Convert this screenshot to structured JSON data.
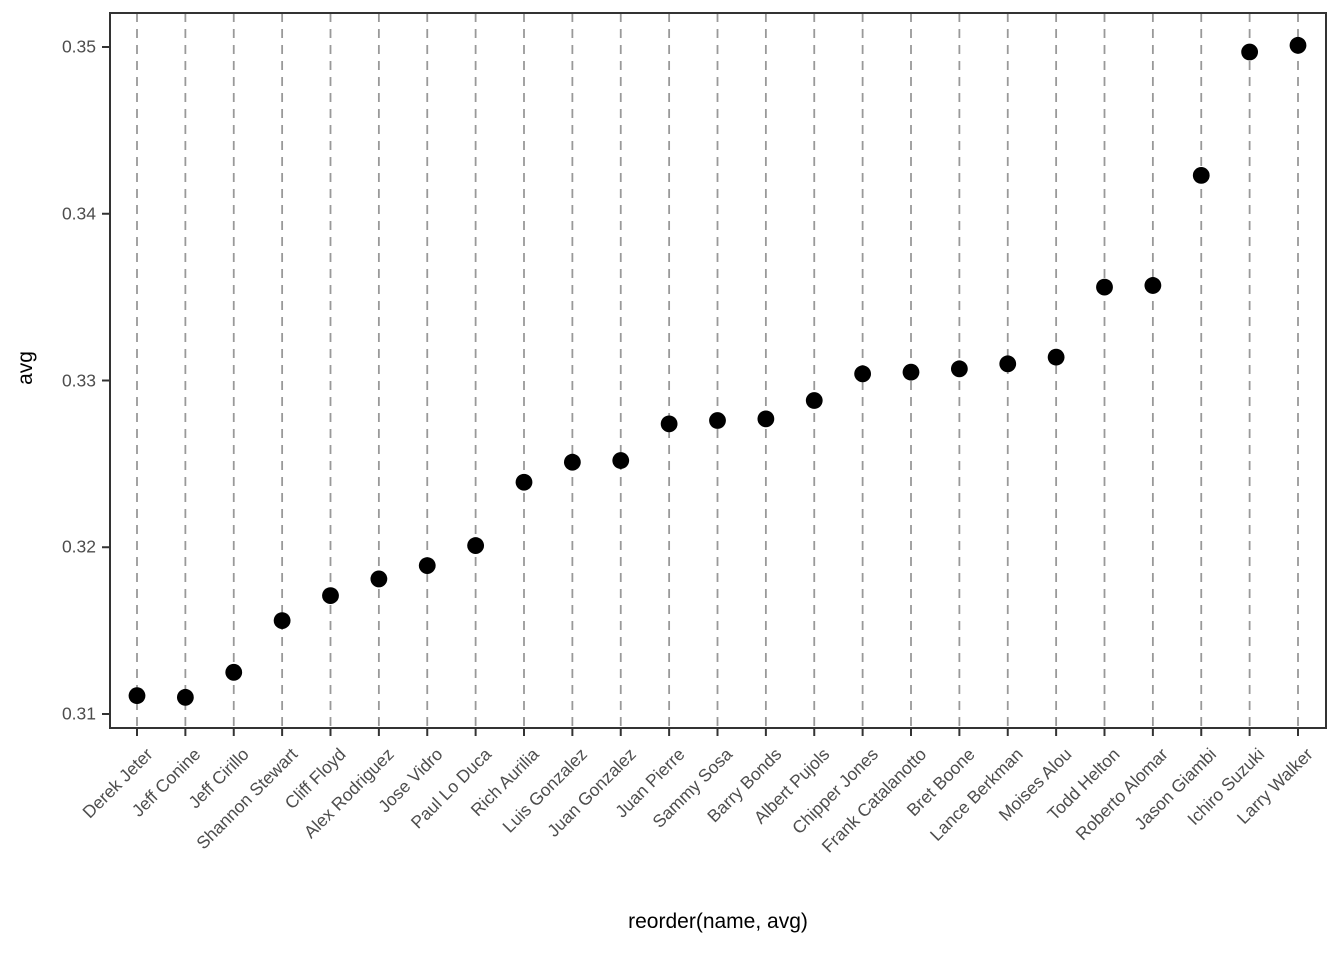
{
  "chart_data": {
    "type": "scatter",
    "subtype": "dot-plot",
    "title": "",
    "xlabel": "reorder(name, avg)",
    "ylabel": "avg",
    "categories": [
      "Derek Jeter",
      "Jeff Conine",
      "Jeff Cirillo",
      "Shannon Stewart",
      "Cliff Floyd",
      "Alex Rodriguez",
      "Jose Vidro",
      "Paul Lo Duca",
      "Rich Aurilia",
      "Luis Gonzalez",
      "Juan Gonzalez",
      "Juan Pierre",
      "Sammy Sosa",
      "Barry Bonds",
      "Albert Pujols",
      "Chipper Jones",
      "Frank Catalanotto",
      "Bret Boone",
      "Lance Berkman",
      "Moises Alou",
      "Todd Helton",
      "Roberto Alomar",
      "Jason Giambi",
      "Ichiro Suzuki",
      "Larry Walker"
    ],
    "values": [
      0.3111,
      0.311,
      0.3125,
      0.3156,
      0.3171,
      0.3181,
      0.3189,
      0.3201,
      0.3239,
      0.3251,
      0.3252,
      0.3274,
      0.3276,
      0.3277,
      0.3288,
      0.3304,
      0.3305,
      0.3307,
      0.331,
      0.3314,
      0.3356,
      0.3357,
      0.3423,
      0.3497,
      0.3501
    ],
    "y_tick_labels": [
      "0.31",
      "0.32",
      "0.33",
      "0.34",
      "0.35"
    ],
    "y_tick_values": [
      0.31,
      0.32,
      0.33,
      0.34,
      0.35
    ],
    "ylim": [
      0.3089,
      0.3516
    ],
    "grid": "major-x-only-dashed-vertical",
    "legend": "none",
    "colors": {
      "point": "#000000",
      "gridline": "#999999",
      "axis_text": "#4d4d4d",
      "axis_title": "#000000",
      "panel_border": "#333333",
      "tick_mark": "#333333",
      "background": "#ffffff"
    }
  }
}
